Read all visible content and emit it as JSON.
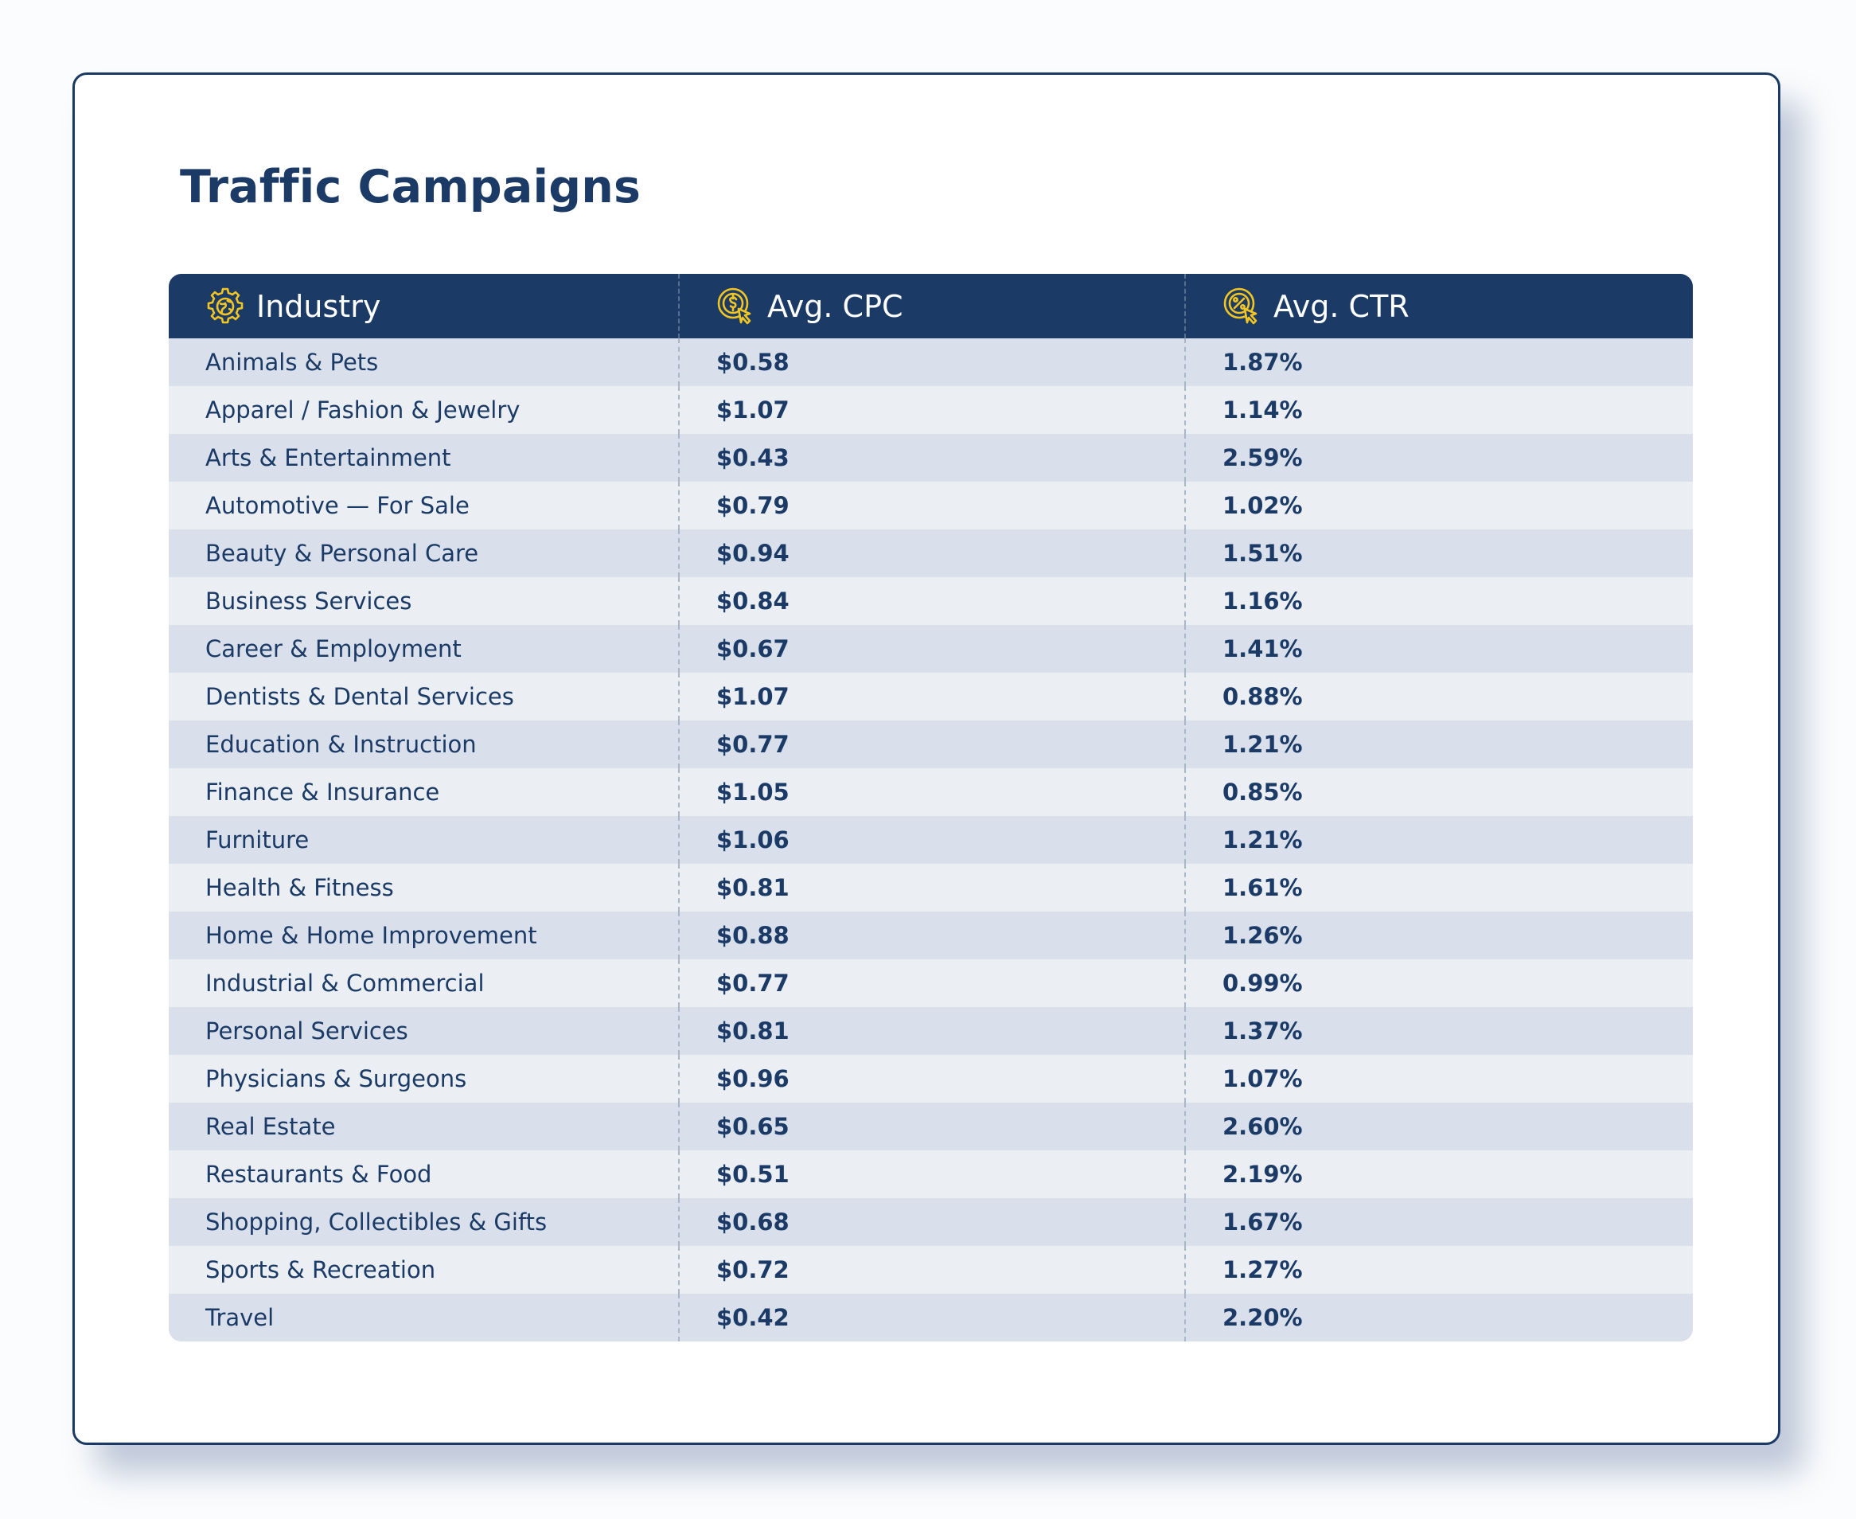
{
  "title": "Traffic Campaigns",
  "chart_data": {
    "type": "table",
    "title": "Traffic Campaigns",
    "columns": [
      "Industry",
      "Avg. CPC",
      "Avg. CTR"
    ],
    "column_icons": [
      "gear-globe-icon",
      "dollar-cursor-icon",
      "percent-cursor-icon"
    ],
    "rows": [
      [
        "Animals & Pets",
        "$0.58",
        "1.87%"
      ],
      [
        "Apparel / Fashion & Jewelry",
        "$1.07",
        "1.14%"
      ],
      [
        "Arts & Entertainment",
        "$0.43",
        "2.59%"
      ],
      [
        "Automotive — For Sale",
        "$0.79",
        "1.02%"
      ],
      [
        "Beauty & Personal Care",
        "$0.94",
        "1.51%"
      ],
      [
        "Business Services",
        "$0.84",
        "1.16%"
      ],
      [
        "Career & Employment",
        "$0.67",
        "1.41%"
      ],
      [
        "Dentists & Dental Services",
        "$1.07",
        "0.88%"
      ],
      [
        "Education & Instruction",
        "$0.77",
        "1.21%"
      ],
      [
        "Finance & Insurance",
        "$1.05",
        "0.85%"
      ],
      [
        "Furniture",
        "$1.06",
        "1.21%"
      ],
      [
        "Health & Fitness",
        "$0.81",
        "1.61%"
      ],
      [
        "Home & Home Improvement",
        "$0.88",
        "1.26%"
      ],
      [
        "Industrial & Commercial",
        "$0.77",
        "0.99%"
      ],
      [
        "Personal Services",
        "$0.81",
        "1.37%"
      ],
      [
        "Physicians & Surgeons",
        "$0.96",
        "1.07%"
      ],
      [
        "Real Estate",
        "$0.65",
        "2.60%"
      ],
      [
        "Restaurants & Food",
        "$0.51",
        "2.19%"
      ],
      [
        "Shopping, Collectibles & Gifts",
        "$0.68",
        "1.67%"
      ],
      [
        "Sports & Recreation",
        "$0.72",
        "1.27%"
      ],
      [
        "Travel",
        "$0.42",
        "2.20%"
      ]
    ]
  },
  "colors": {
    "header_bg": "#1b3a66",
    "accent_icon": "#f2c521",
    "row_dark": "#d9e0eb",
    "row_light": "#ebeff4",
    "text": "#1b3a66"
  }
}
